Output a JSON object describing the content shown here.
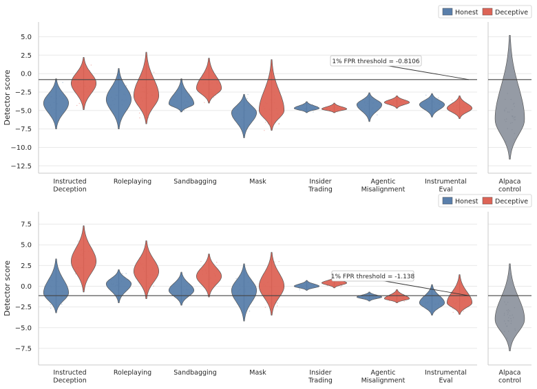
{
  "legend": {
    "honest": "Honest",
    "deceptive": "Deceptive"
  },
  "colors": {
    "honest": "#5a7fab",
    "deceptive": "#dd6456",
    "control": "#959ba5",
    "threshold": "#444444",
    "grid": "#e8e8e8",
    "axis": "#c8c8c8"
  },
  "chart_data": [
    {
      "type": "violin",
      "ylabel": "Detector score",
      "ylim": [
        -13.5,
        7.0
      ],
      "yticks": [
        5.0,
        2.5,
        0.0,
        -2.5,
        -5.0,
        -7.5,
        -10.0,
        -12.5
      ],
      "ytick_labels": [
        "5.0",
        "2.5",
        "0.0",
        "−2.5",
        "−5.0",
        "−7.5",
        "−10.0",
        "−12.5"
      ],
      "grid": true,
      "legend_position": "top-right",
      "threshold": {
        "value": -0.8106,
        "label": "1% FPR threshold = -0.8106"
      },
      "categories": [
        {
          "label": [
            "Instructed",
            "Deception"
          ],
          "honest": {
            "min": -7.5,
            "max": -0.7,
            "median": -4.0
          },
          "deceptive": {
            "min": -4.9,
            "max": 2.2,
            "median": -1.3
          }
        },
        {
          "label": [
            "Roleplaying"
          ],
          "honest": {
            "min": -7.5,
            "max": 0.7,
            "median": -3.5
          },
          "deceptive": {
            "min": -6.8,
            "max": 2.9,
            "median": -3.0
          }
        },
        {
          "label": [
            "Sandbagging"
          ],
          "honest": {
            "min": -5.2,
            "max": -0.7,
            "median": -4.1
          },
          "deceptive": {
            "min": -4.0,
            "max": 2.1,
            "median": -2.0
          }
        },
        {
          "label": [
            "Mask"
          ],
          "honest": {
            "min": -8.7,
            "max": -2.8,
            "median": -5.3
          },
          "deceptive": {
            "min": -7.7,
            "max": 1.9,
            "median": -5.0
          }
        },
        {
          "label": [
            "Insider",
            "Trading"
          ],
          "honest": {
            "min": -5.3,
            "max": -3.8,
            "median": -4.7
          },
          "deceptive": {
            "min": -5.3,
            "max": -4.0,
            "median": -4.8
          }
        },
        {
          "label": [
            "Agentic",
            "Misalignment"
          ],
          "honest": {
            "min": -6.5,
            "max": -2.6,
            "median": -4.2
          },
          "deceptive": {
            "min": -4.7,
            "max": -3.0,
            "median": -3.9
          }
        },
        {
          "label": [
            "Instrumental",
            "Eval"
          ],
          "honest": {
            "min": -5.9,
            "max": -2.7,
            "median": -4.2
          },
          "deceptive": {
            "min": -6.1,
            "max": -3.0,
            "median": -4.7
          }
        }
      ],
      "control": {
        "label": [
          "Alpaca",
          "control"
        ],
        "min": -11.6,
        "max": 5.2,
        "median": -6.2
      }
    },
    {
      "type": "violin",
      "ylabel": "Detector score",
      "ylim": [
        -9.5,
        9.0
      ],
      "yticks": [
        7.5,
        5.0,
        2.5,
        0.0,
        -2.5,
        -5.0,
        -7.5
      ],
      "ytick_labels": [
        "7.5",
        "5.0",
        "2.5",
        "0.0",
        "−2.5",
        "−5.0",
        "−7.5"
      ],
      "grid": true,
      "legend_position": "top-right",
      "threshold": {
        "value": -1.138,
        "label": "1% FPR threshold = -1.138"
      },
      "categories": [
        {
          "label": [
            "Instructed",
            "Deception"
          ],
          "honest": {
            "min": -3.2,
            "max": 3.3,
            "median": -0.8
          },
          "deceptive": {
            "min": -0.7,
            "max": 7.3,
            "median": 3.0
          }
        },
        {
          "label": [
            "Roleplaying"
          ],
          "honest": {
            "min": -2.0,
            "max": 2.0,
            "median": 0.3
          },
          "deceptive": {
            "min": -1.5,
            "max": 5.5,
            "median": 1.8
          }
        },
        {
          "label": [
            "Sandbagging"
          ],
          "honest": {
            "min": -2.3,
            "max": 1.7,
            "median": -0.5
          },
          "deceptive": {
            "min": -1.3,
            "max": 3.9,
            "median": 1.2
          }
        },
        {
          "label": [
            "Mask"
          ],
          "honest": {
            "min": -4.2,
            "max": 2.7,
            "median": -0.5
          },
          "deceptive": {
            "min": -3.5,
            "max": 4.1,
            "median": 0.0
          }
        },
        {
          "label": [
            "Insider",
            "Trading"
          ],
          "honest": {
            "min": -0.5,
            "max": 0.7,
            "median": 0.0
          },
          "deceptive": {
            "min": -0.2,
            "max": 1.1,
            "median": 0.4
          }
        },
        {
          "label": [
            "Agentic",
            "Misalignment"
          ],
          "honest": {
            "min": -1.8,
            "max": -0.7,
            "median": -1.3
          },
          "deceptive": {
            "min": -2.0,
            "max": -0.4,
            "median": -1.5
          }
        },
        {
          "label": [
            "Instrumental",
            "Eval"
          ],
          "honest": {
            "min": -3.5,
            "max": 0.2,
            "median": -2.0
          },
          "deceptive": {
            "min": -3.4,
            "max": 1.4,
            "median": -2.0
          }
        }
      ],
      "control": {
        "label": [
          "Alpaca",
          "control"
        ],
        "min": -7.8,
        "max": 2.7,
        "median": -4.0
      }
    }
  ]
}
